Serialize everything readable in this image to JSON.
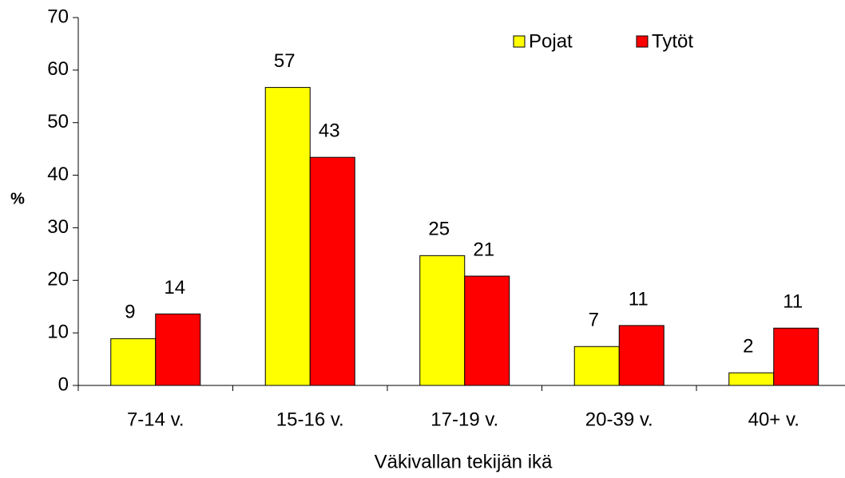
{
  "chart_data": {
    "type": "bar",
    "xlabel": "Väkivallan tekijän ikä",
    "ylabel": "%",
    "categories": [
      "7-14 v.",
      "15-16 v.",
      "17-19 v.",
      "20-39 v.",
      "40+ v."
    ],
    "series": [
      {
        "name": "Pojat",
        "color": "#ffff00",
        "values": [
          8.9,
          56.7,
          24.7,
          7.4,
          2.4
        ],
        "value_labels": [
          "9",
          "57",
          "25",
          "7",
          "2"
        ]
      },
      {
        "name": "Tytöt",
        "color": "#ff0000",
        "values": [
          13.6,
          43.4,
          20.8,
          11.4,
          10.9
        ],
        "value_labels": [
          "14",
          "43",
          "21",
          "11",
          "11"
        ]
      }
    ],
    "ylim": [
      0,
      70
    ],
    "yticks": [
      0,
      10,
      20,
      30,
      40,
      50,
      60,
      70
    ],
    "legend": "top-right"
  }
}
